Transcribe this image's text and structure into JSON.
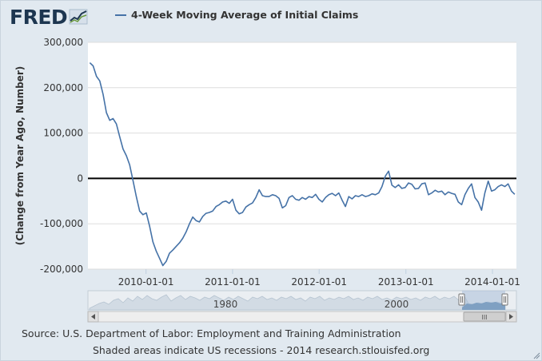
{
  "header": {
    "logo_text": "FRED",
    "logo_icon": "chart-line-icon",
    "legend_label": "4-Week Moving Average of Initial Claims",
    "legend_color": "#4572a7"
  },
  "chart_data": {
    "type": "line",
    "series": [
      {
        "name": "4-Week Moving Average of Initial Claims",
        "color": "#4572a7",
        "x": [
          "2009-05-09",
          "2009-05-23",
          "2009-06-06",
          "2009-06-20",
          "2009-07-04",
          "2009-07-18",
          "2009-08-01",
          "2009-08-15",
          "2009-08-29",
          "2009-09-12",
          "2009-09-26",
          "2009-10-10",
          "2009-10-24",
          "2009-11-07",
          "2009-11-21",
          "2009-12-05",
          "2009-12-19",
          "2010-01-02",
          "2010-01-16",
          "2010-01-30",
          "2010-02-13",
          "2010-02-27",
          "2010-03-13",
          "2010-03-27",
          "2010-04-10",
          "2010-04-24",
          "2010-05-08",
          "2010-05-22",
          "2010-06-05",
          "2010-06-19",
          "2010-07-03",
          "2010-07-17",
          "2010-07-31",
          "2010-08-14",
          "2010-08-28",
          "2010-09-11",
          "2010-09-25",
          "2010-10-09",
          "2010-10-23",
          "2010-11-06",
          "2010-11-20",
          "2010-12-04",
          "2010-12-18",
          "2011-01-01",
          "2011-01-15",
          "2011-01-29",
          "2011-02-12",
          "2011-02-26",
          "2011-03-12",
          "2011-03-26",
          "2011-04-09",
          "2011-04-23",
          "2011-05-07",
          "2011-05-21",
          "2011-06-04",
          "2011-06-18",
          "2011-07-02",
          "2011-07-16",
          "2011-07-30",
          "2011-08-13",
          "2011-08-27",
          "2011-09-10",
          "2011-09-24",
          "2011-10-08",
          "2011-10-22",
          "2011-11-05",
          "2011-11-19",
          "2011-12-03",
          "2011-12-17",
          "2011-12-31",
          "2012-01-14",
          "2012-01-28",
          "2012-02-11",
          "2012-02-25",
          "2012-03-10",
          "2012-03-24",
          "2012-04-07",
          "2012-04-21",
          "2012-05-05",
          "2012-05-19",
          "2012-06-02",
          "2012-06-16",
          "2012-06-30",
          "2012-07-14",
          "2012-07-28",
          "2012-08-11",
          "2012-08-25",
          "2012-09-08",
          "2012-09-22",
          "2012-10-06",
          "2012-10-20",
          "2012-11-03",
          "2012-11-17",
          "2012-12-01",
          "2012-12-15",
          "2012-12-29",
          "2013-01-12",
          "2013-01-26",
          "2013-02-09",
          "2013-02-23",
          "2013-03-09",
          "2013-03-23",
          "2013-04-06",
          "2013-04-20",
          "2013-05-04",
          "2013-05-18",
          "2013-06-01",
          "2013-06-15",
          "2013-06-29",
          "2013-07-13",
          "2013-07-27",
          "2013-08-10",
          "2013-08-24",
          "2013-09-07",
          "2013-09-21",
          "2013-10-05",
          "2013-10-19",
          "2013-11-02",
          "2013-11-16",
          "2013-11-30",
          "2013-12-14",
          "2013-12-28",
          "2014-01-11",
          "2014-01-25",
          "2014-02-08",
          "2014-02-22",
          "2014-03-08",
          "2014-03-22",
          "2014-04-05"
        ],
        "values": [
          255000,
          248000,
          225000,
          215000,
          185000,
          145000,
          128000,
          132000,
          120000,
          92000,
          65000,
          50000,
          30000,
          -5000,
          -40000,
          -72000,
          -80000,
          -76000,
          -105000,
          -140000,
          -160000,
          -176000,
          -192000,
          -183000,
          -165000,
          -158000,
          -150000,
          -142000,
          -132000,
          -118000,
          -100000,
          -85000,
          -93000,
          -96000,
          -84000,
          -77000,
          -75000,
          -72000,
          -62000,
          -58000,
          -52000,
          -50000,
          -55000,
          -46000,
          -70000,
          -78000,
          -75000,
          -63000,
          -58000,
          -54000,
          -42000,
          -25000,
          -38000,
          -40000,
          -40000,
          -36000,
          -38000,
          -44000,
          -65000,
          -60000,
          -42000,
          -38000,
          -46000,
          -48000,
          -42000,
          -46000,
          -40000,
          -42000,
          -35000,
          -46000,
          -52000,
          -42000,
          -36000,
          -33000,
          -38000,
          -32000,
          -48000,
          -62000,
          -40000,
          -45000,
          -38000,
          -40000,
          -36000,
          -40000,
          -38000,
          -34000,
          -36000,
          -32000,
          -18000,
          5000,
          16000,
          -15000,
          -20000,
          -14000,
          -22000,
          -20000,
          -10000,
          -13000,
          -23000,
          -22000,
          -12000,
          -10000,
          -36000,
          -32000,
          -26000,
          -30000,
          -28000,
          -36000,
          -30000,
          -33000,
          -35000,
          -52000,
          -58000,
          -36000,
          -22000,
          -12000,
          -42000,
          -52000,
          -70000,
          -32000,
          -6000,
          -28000,
          -25000,
          -18000,
          -14000,
          -18000,
          -12000,
          -28000,
          -35000
        ]
      }
    ],
    "title": "",
    "xlabel": "",
    "ylabel": "(Change from Year Ago, Number)",
    "ylim": [
      -200000,
      300000
    ],
    "xlim": [
      "2009-05-01",
      "2014-04-12"
    ],
    "yticks": [
      -200000,
      -100000,
      0,
      100000,
      200000,
      300000
    ],
    "ytick_labels": [
      "-200,000",
      "-100,000",
      "0",
      "100,000",
      "200,000",
      "300,000"
    ],
    "xticks": [
      "2010-01-01",
      "2011-01-01",
      "2012-01-01",
      "2013-01-01",
      "2014-01-01"
    ],
    "xtick_labels": [
      "2010-01-01",
      "2011-01-01",
      "2012-01-01",
      "2013-01-01",
      "2014-01-01"
    ],
    "grid": true,
    "legend": "top-left",
    "zero_line": true
  },
  "navigator": {
    "labels": [
      "1980",
      "2000"
    ],
    "scroll_left_icon": "arrow-left-icon",
    "scroll_right_icon": "arrow-right-icon",
    "thumb_grip_label": "III"
  },
  "footer": {
    "source": "Source: U.S. Department of Labor: Employment and Training Administration",
    "note": "Shaded areas indicate US recessions - 2014 research.stlouisfed.org"
  }
}
